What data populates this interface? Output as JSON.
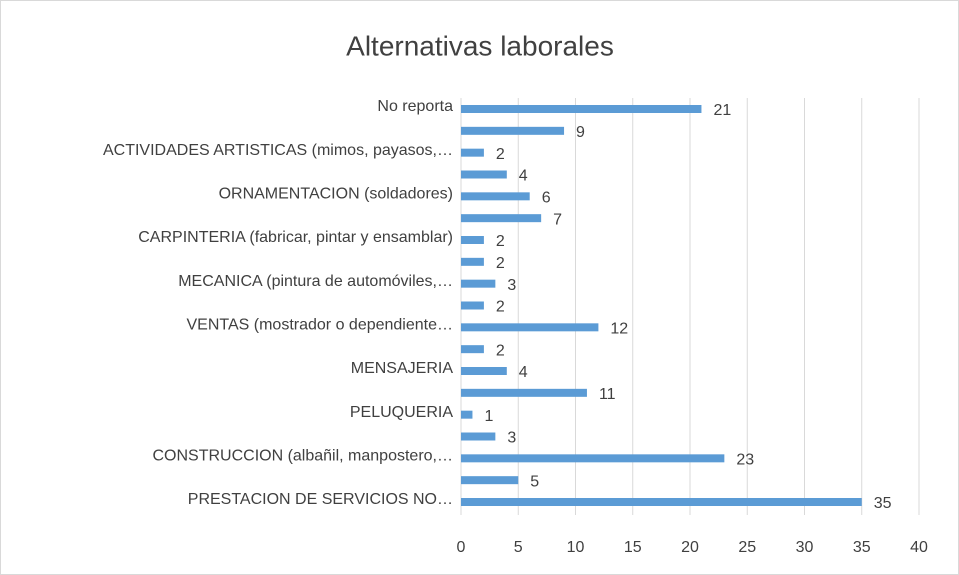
{
  "chart_data": {
    "type": "barh",
    "title": "Alternativas laborales",
    "categories": [
      "No reporta",
      null,
      "ACTIVIDADES ARTISTICAS (mimos, payasos,…",
      null,
      "ORNAMENTACION (soldadores)",
      null,
      "CARPINTERIA (fabricar, pintar y ensamblar)",
      null,
      "MECANICA (pintura de automóviles,…",
      null,
      "VENTAS (mostrador o dependiente…",
      null,
      "MENSAJERIA",
      null,
      "PELUQUERIA",
      null,
      "CONSTRUCCION (albañil, manpostero,…",
      null,
      "PRESTACION  DE SERVICIOS NO…"
    ],
    "values": [
      21,
      9,
      2,
      4,
      6,
      7,
      2,
      2,
      3,
      2,
      12,
      2,
      4,
      11,
      1,
      3,
      23,
      5,
      35
    ],
    "color": "#5b9bd5",
    "xlim": [
      0,
      40
    ],
    "xticks": [
      0,
      5,
      10,
      15,
      20,
      25,
      30,
      35,
      40
    ],
    "grid": true
  }
}
